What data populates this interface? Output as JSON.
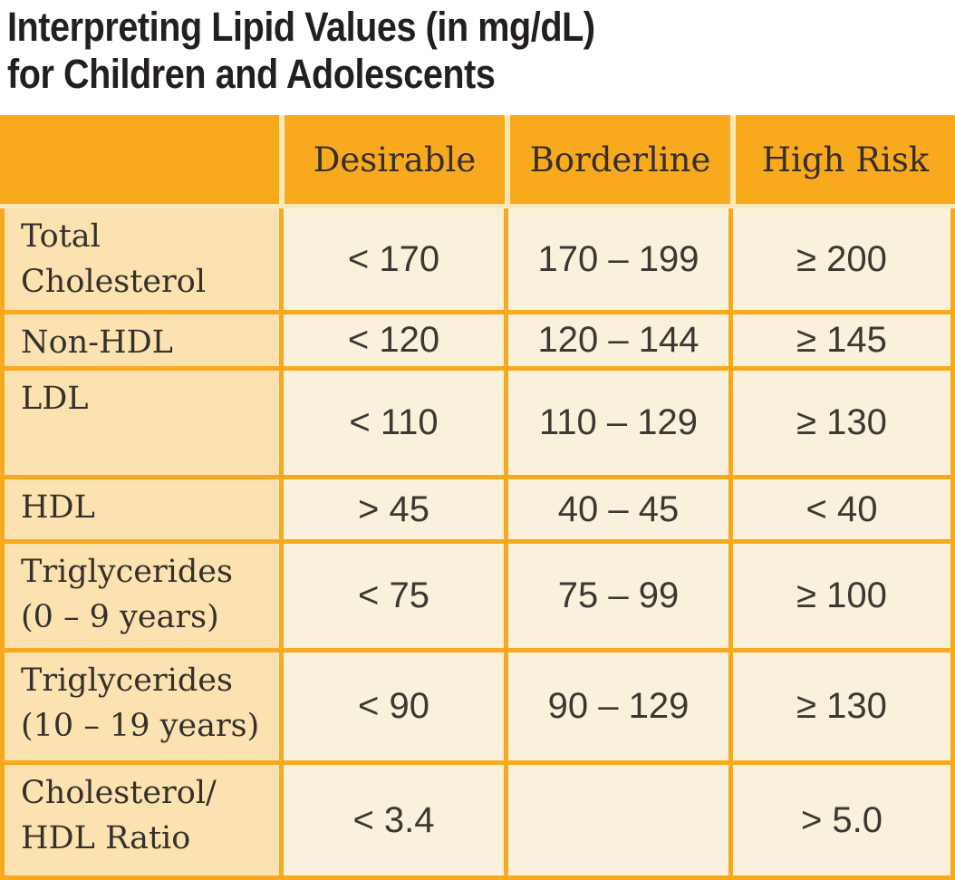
{
  "title": {
    "line1": "Interpreting Lipid Values (in mg/dL)",
    "line2": "for Children and Adolescents"
  },
  "chart_data": {
    "type": "table",
    "title": "Interpreting Lipid Values (in mg/dL) for Children and Adolescents",
    "unit": "mg/dL",
    "columns": [
      "",
      "Desirable",
      "Borderline",
      "High Risk"
    ],
    "header": {
      "desirable": "Desirable",
      "borderline": "Borderline",
      "high_risk": "High Risk"
    },
    "rows": [
      {
        "label": "Total\nCholesterol",
        "desirable": "< 170",
        "borderline": "170 – 199",
        "high_risk": "≥ 200"
      },
      {
        "label": "Non-HDL",
        "desirable": "< 120",
        "borderline": "120 – 144",
        "high_risk": "≥ 145"
      },
      {
        "label": "LDL",
        "desirable": "< 110",
        "borderline": "110 – 129",
        "high_risk": "≥ 130"
      },
      {
        "label": "HDL",
        "desirable": "> 45",
        "borderline": "40 – 45",
        "high_risk": "< 40"
      },
      {
        "label": "Triglycerides\n(0 – 9 years)",
        "desirable": "< 75",
        "borderline": "75 – 99",
        "high_risk": "≥ 100"
      },
      {
        "label": "Triglycerides\n(10 – 19 years)",
        "desirable": "< 90",
        "borderline": "90 – 129",
        "high_risk": "≥ 130"
      },
      {
        "label": "Cholesterol/\nHDL Ratio",
        "desirable": "< 3.4",
        "borderline": "",
        "high_risk": "> 5.0"
      }
    ],
    "layout": {
      "grid": true,
      "legend": "none"
    }
  },
  "colors": {
    "header_orange": "#f8a91e",
    "grid_orange": "#f8a91e",
    "pale_separator": "#fae9b8",
    "label_peach": "#fbe2b0",
    "value_cream": "#faf1dc",
    "title_text": "#231f20",
    "serif_text": "#35302a",
    "value_text": "#3b3832",
    "page_background": "#ffffff"
  }
}
